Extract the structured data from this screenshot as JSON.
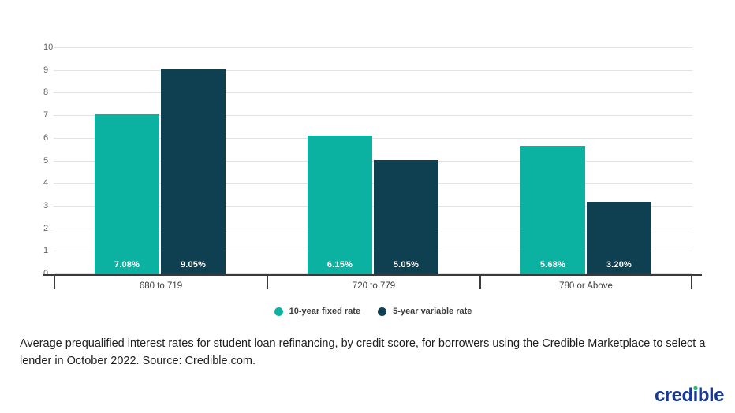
{
  "chart_data": {
    "type": "bar",
    "title": "",
    "categories": [
      "680 to 719",
      "720 to 779",
      "780 or Above"
    ],
    "series": [
      {
        "name": "10-year fixed rate",
        "color": "#0CB2A1",
        "values": [
          7.08,
          6.15,
          5.68
        ],
        "labels": [
          "7.08%",
          "6.15%",
          "5.68%"
        ]
      },
      {
        "name": "5-year variable rate",
        "color": "#0E4051",
        "values": [
          9.05,
          5.05,
          3.2
        ],
        "labels": [
          "9.05%",
          "5.05%",
          "3.20%"
        ]
      }
    ],
    "xlabel": "",
    "ylabel": "",
    "ylim": [
      0,
      10
    ],
    "ytick_step": 1,
    "ytick_labels": [
      "0",
      "1",
      "2",
      "3",
      "4",
      "5",
      "6",
      "7",
      "8",
      "9",
      "10"
    ],
    "grid": true,
    "legend_position": "bottom"
  },
  "caption": {
    "text": "Average prequalified interest rates for student loan refinancing, by credit score, for borrowers using the Credible Marketplace to select a lender in October 2022. Source: Credible.com."
  },
  "footer": {
    "logo_text": "credible"
  },
  "colors": {
    "series_teal": "#0CB2A1",
    "series_navy": "#0E4051",
    "gridline": "#e3e3e3",
    "axis": "#3a3a3a",
    "logo_blue": "#183A94",
    "logo_dot_green": "#2FB574"
  }
}
